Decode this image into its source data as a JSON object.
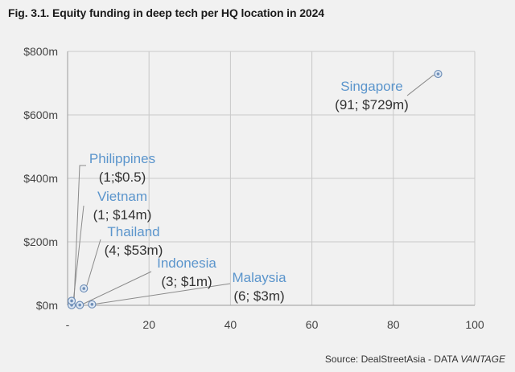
{
  "title": "Fig. 3.1. Equity funding in deep tech per HQ location in 2024",
  "source_prefix": "Source: DealStreetAsia - DATA ",
  "source_brand": "VANTAGE",
  "colors": {
    "background": "#f1f1f1",
    "grid": "#c9c9c9",
    "point": "#6f8fb8",
    "label_name": "#5b95cc",
    "label_value": "#333333",
    "leader": "#8a8a8a"
  },
  "chart_data": {
    "type": "scatter",
    "title": "Fig. 3.1. Equity funding in deep tech per HQ location in 2024",
    "xlabel": "",
    "ylabel": "",
    "xlim": [
      0,
      100
    ],
    "ylim": [
      0,
      800
    ],
    "x_ticks": [
      0,
      20,
      40,
      60,
      80,
      100
    ],
    "x_tick_labels": [
      "-",
      "20",
      "40",
      "60",
      "80",
      "100"
    ],
    "y_ticks": [
      0,
      200,
      400,
      600,
      800
    ],
    "y_tick_labels": [
      "$0m",
      "$200m",
      "$400m",
      "$600m",
      "$800m"
    ],
    "grid": true,
    "points": [
      {
        "name": "Singapore",
        "value_label": "(91; $729m)",
        "x": 91,
        "y": 729
      },
      {
        "name": "Philippines",
        "value_label": "(1;$0.5)",
        "x": 1,
        "y": 0.5
      },
      {
        "name": "Vietnam",
        "value_label": "(1; $14m)",
        "x": 1,
        "y": 14
      },
      {
        "name": "Thailand",
        "value_label": "(4; $53m)",
        "x": 4,
        "y": 53
      },
      {
        "name": "Indonesia",
        "value_label": "(3; $1m)",
        "x": 3,
        "y": 1
      },
      {
        "name": "Malaysia",
        "value_label": "(6; $3m)",
        "x": 6,
        "y": 3
      }
    ]
  }
}
